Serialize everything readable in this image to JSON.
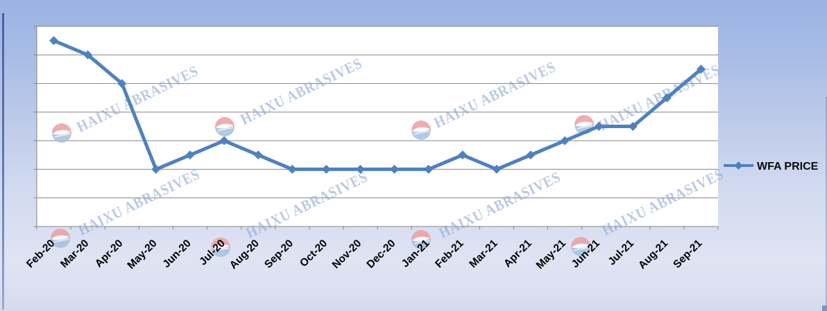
{
  "legend": {
    "label": "WFA PRICE"
  },
  "watermark": {
    "text": "HAIXU ABRASIVES"
  },
  "colors": {
    "series": "#4F81BD",
    "background_top": "#9BB2E3",
    "background_bottom": "#DBE0F1",
    "plot_background": "#FFFFFF",
    "gridline": "#848484",
    "axis": "#848484",
    "x_label_text": "#000000",
    "legend_text": "#0A0A0A",
    "watermark_text": "#8FA9CF",
    "logo_top": "#E9A1A3",
    "logo_bottom": "#A7C0DE"
  },
  "chart_data": {
    "type": "line",
    "title": "",
    "xlabel": "",
    "ylabel": "",
    "categories": [
      "Feb-20",
      "Mar-20",
      "Apr-20",
      "May-20",
      "Jun-20",
      "Jul-20",
      "Aug-20",
      "Sep-20",
      "Oct-20",
      "Nov-20",
      "Dec-20",
      "Jan-21",
      "Feb-21",
      "Mar-21",
      "Apr-21",
      "May-21",
      "Jun-21",
      "Jul-21",
      "Aug-21",
      "Sep-21"
    ],
    "series": [
      {
        "name": "WFA PRICE",
        "color": "#4F81BD",
        "marker": "diamond",
        "values": [
          6.5,
          6,
          5,
          2,
          2.5,
          3,
          2.5,
          2,
          2,
          2,
          2,
          2,
          2.5,
          2,
          2.5,
          3,
          3.5,
          3.5,
          4.5,
          5.5
        ]
      }
    ],
    "ylim": [
      0,
      7
    ],
    "y_gridline_interval": 1,
    "y_axis_labels_visible": false,
    "grid": "horizontal",
    "x_tick_label_rotation_deg": -45,
    "legend_position": "right"
  }
}
